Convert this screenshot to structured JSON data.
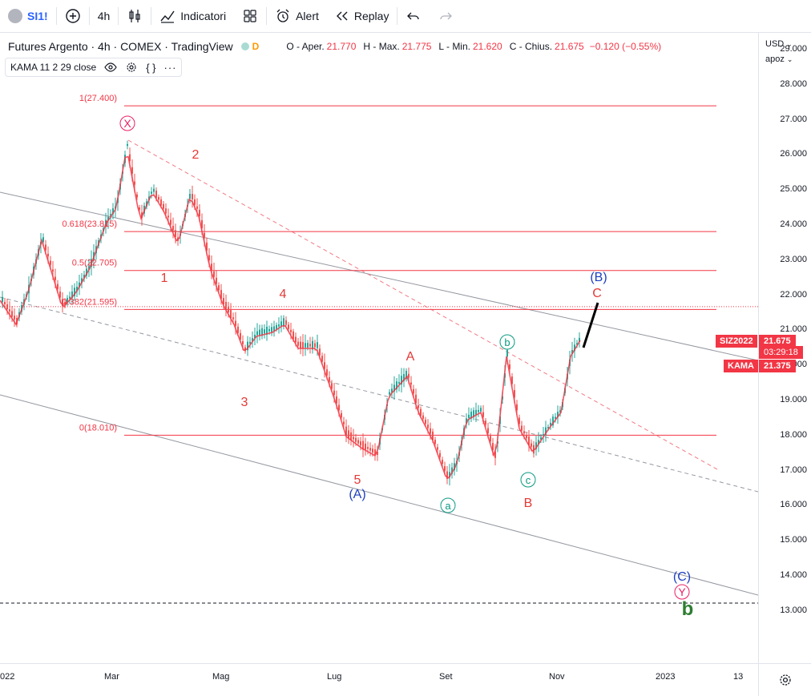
{
  "toolbar": {
    "symbol": "SI1!",
    "interval": "4h",
    "indicators_label": "Indicatori",
    "alert_label": "Alert",
    "replay_label": "Replay"
  },
  "legend": {
    "title": "Futures Argento · 4h · COMEX · TradingView",
    "status_letter": "D",
    "o_label": "O - Aper.",
    "o_value": "21.770",
    "h_label": "H - Max.",
    "h_value": "21.775",
    "l_label": "L - Min.",
    "l_value": "21.620",
    "c_label": "C - Chius.",
    "c_value": "21.675",
    "change": "−0.120 (−0.55%)",
    "indicator": "KAMA 11 2 29 close"
  },
  "price_axis": {
    "currency": "USD",
    "unit": "apoz",
    "ticks": [
      "29.000",
      "28.000",
      "27.000",
      "26.000",
      "25.000",
      "24.000",
      "23.000",
      "22.000",
      "21.000",
      "20.000",
      "19.000",
      "18.000",
      "17.000",
      "16.000",
      "15.000",
      "14.000",
      "13.000"
    ],
    "symbol_tag": "SIZ2022",
    "price_tag": "21.675",
    "countdown": "03:29:18",
    "kama_tag": "KAMA",
    "kama_value": "21.375"
  },
  "time_axis": {
    "ticks": [
      "022",
      "Mar",
      "Mag",
      "Lug",
      "Set",
      "Nov",
      "2023",
      "13"
    ]
  },
  "fib_levels": [
    "1(27.400)",
    "0.618(23.815)",
    "0.5(22.705)",
    "0.382(21.595)",
    "0(18.010)"
  ],
  "wave_labels": {
    "x": "X",
    "w2": "2",
    "w1": "1",
    "w4": "4",
    "w3": "3",
    "w5": "5",
    "wA_paren": "(A)",
    "a_small": "a",
    "A_big": "A",
    "b_small": "b",
    "c_small": "c",
    "B_big": "B",
    "C_big": "C",
    "B_paren": "(B)",
    "C_paren": "(C)",
    "y": "Y",
    "b_green": "b"
  },
  "colors": {
    "up": "#26a69a",
    "down": "#ef5350",
    "fib": "#f23645",
    "wave_red": "#e53935",
    "wave_blue": "#1e3fbf",
    "wave_teal": "#089981",
    "wave_pink": "#e91e63",
    "kama": "#f23645",
    "green_b": "#2e7d32"
  }
}
